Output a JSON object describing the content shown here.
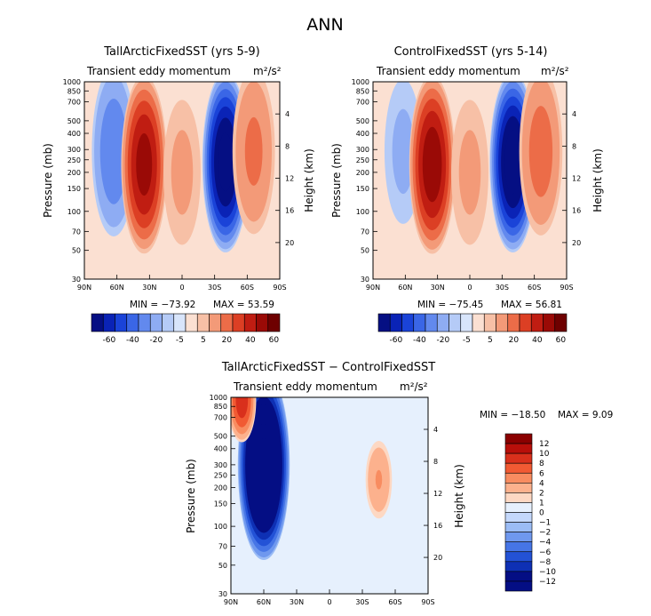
{
  "figure": {
    "title": "ANN"
  },
  "chart_data": [
    {
      "type": "heatmap",
      "title": "TallArcticFixedSST (yrs 5-9)",
      "subtitle_left": "Transient eddy momentum",
      "units": "m²/s²",
      "xlabel": "",
      "ylabel": "Pressure (mb)",
      "ylabel_right": "Height (km)",
      "x_ticks": [
        "90N",
        "60N",
        "30N",
        "0",
        "30S",
        "60S",
        "90S"
      ],
      "y_ticks": [
        "30",
        "50",
        "70",
        "100",
        "150",
        "200",
        "250",
        "300",
        "400",
        "500",
        "700",
        "850",
        "1000"
      ],
      "height_ticks": [
        "20",
        "16",
        "12",
        "8",
        "4"
      ],
      "min_label": "MIN = −73.92",
      "max_label": "MAX =  53.59",
      "min": -73.92,
      "max": 53.59,
      "colorbar_labels": [
        "-60",
        "-40",
        "-20",
        "-5",
        "5",
        "20",
        "40",
        "60"
      ],
      "features": [
        {
          "lat": 63,
          "p": 290,
          "value": -28
        },
        {
          "lat": 35,
          "p": 230,
          "value": 53.59
        },
        {
          "lat": -40,
          "p": 240,
          "value": -73.92
        },
        {
          "lat": -66,
          "p": 290,
          "value": 22
        },
        {
          "lat": 0,
          "p": 200,
          "value": 12
        }
      ]
    },
    {
      "type": "heatmap",
      "title": "ControlFixedSST (yrs 5-14)",
      "subtitle_left": "Transient eddy momentum",
      "units": "m²/s²",
      "xlabel": "",
      "ylabel": "Pressure (mb)",
      "ylabel_right": "Height (km)",
      "x_ticks": [
        "90N",
        "60N",
        "30N",
        "0",
        "30S",
        "60S",
        "90S"
      ],
      "y_ticks": [
        "30",
        "50",
        "70",
        "100",
        "150",
        "200",
        "250",
        "300",
        "400",
        "500",
        "700",
        "850",
        "1000"
      ],
      "height_ticks": [
        "20",
        "16",
        "12",
        "8",
        "4"
      ],
      "min_label": "MIN = −75.45",
      "max_label": "MAX =  56.81",
      "min": -75.45,
      "max": 56.81,
      "colorbar_labels": [
        "-60",
        "-40",
        "-20",
        "-5",
        "5",
        "20",
        "40",
        "60"
      ],
      "features": [
        {
          "lat": 62,
          "p": 290,
          "value": -12
        },
        {
          "lat": 35,
          "p": 230,
          "value": 56.81
        },
        {
          "lat": -40,
          "p": 240,
          "value": -75.45
        },
        {
          "lat": -66,
          "p": 290,
          "value": 25
        },
        {
          "lat": 0,
          "p": 200,
          "value": 12
        }
      ]
    },
    {
      "type": "heatmap",
      "title": "TallArcticFixedSST − ControlFixedSST",
      "subtitle_left": "Transient eddy momentum",
      "units": "m²/s²",
      "xlabel": "",
      "ylabel": "Pressure (mb)",
      "ylabel_right": "Height (km)",
      "x_ticks": [
        "90N",
        "60N",
        "30N",
        "0",
        "30S",
        "60S",
        "90S"
      ],
      "y_ticks": [
        "30",
        "50",
        "70",
        "100",
        "150",
        "200",
        "250",
        "300",
        "400",
        "500",
        "700",
        "850",
        "1000"
      ],
      "height_ticks": [
        "20",
        "16",
        "12",
        "8",
        "4"
      ],
      "min_label": "MIN = −18.50",
      "max_label": "MAX =    9.09",
      "min": -18.5,
      "max": 9.09,
      "colorbar_labels": [
        "12",
        "10",
        "8",
        "6",
        "4",
        "2",
        "1",
        "0",
        "−1",
        "−2",
        "−4",
        "−6",
        "−8",
        "−10",
        "−12"
      ],
      "features": [
        {
          "lat": 60,
          "p": 300,
          "value": -18.5
        },
        {
          "lat": -45,
          "p": 230,
          "value": 4
        },
        {
          "lat": 80,
          "p": 950,
          "value": 9.09
        }
      ]
    }
  ]
}
